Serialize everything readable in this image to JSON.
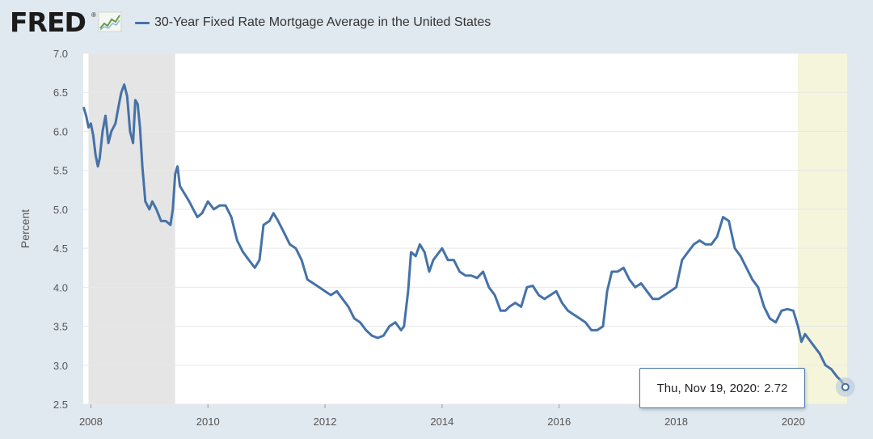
{
  "header": {
    "logo_text": "FRED",
    "logo_reg": "®",
    "logo_icon": "line-chart-icon",
    "series_title": "30-Year Fixed Rate Mortgage Average in the United States"
  },
  "colors": {
    "line": "#4572a7",
    "recession": "#e5e5e5",
    "recent_highlight": "#f5f5dc",
    "plot_bg": "#ffffff",
    "page_bg": "#e1e9f0",
    "grid": "#e8e8e8"
  },
  "tooltip": {
    "date": "Thu, Nov 19, 2020:",
    "value": "2.72"
  },
  "chart_data": {
    "type": "line",
    "title": "30-Year Fixed Rate Mortgage Average in the United States",
    "ylabel": "Percent",
    "xlabel": "",
    "xlim": [
      2007.87,
      2020.92
    ],
    "ylim": [
      2.5,
      7.0
    ],
    "yticks": [
      2.5,
      3.0,
      3.5,
      4.0,
      4.5,
      5.0,
      5.5,
      6.0,
      6.5,
      7.0
    ],
    "ytick_labels": [
      "2.5",
      "3.0",
      "3.5",
      "4.0",
      "4.5",
      "5.0",
      "5.5",
      "6.0",
      "6.5",
      "7.0"
    ],
    "xticks": [
      2008,
      2010,
      2012,
      2014,
      2016,
      2018,
      2020
    ],
    "xtick_labels": [
      "2008",
      "2010",
      "2012",
      "2014",
      "2016",
      "2018",
      "2020"
    ],
    "grid": "horizontal",
    "shaded_regions": [
      {
        "kind": "recession",
        "from": 2007.96,
        "to": 2009.44
      },
      {
        "kind": "recession",
        "from": 2020.08,
        "to": 2020.92
      }
    ],
    "series": [
      {
        "points": [
          [
            2007.88,
            6.3
          ],
          [
            2007.92,
            6.2
          ],
          [
            2007.96,
            6.05
          ],
          [
            2008.0,
            6.1
          ],
          [
            2008.04,
            5.95
          ],
          [
            2008.08,
            5.7
          ],
          [
            2008.12,
            5.55
          ],
          [
            2008.15,
            5.65
          ],
          [
            2008.2,
            6.0
          ],
          [
            2008.25,
            6.2
          ],
          [
            2008.3,
            5.85
          ],
          [
            2008.35,
            6.0
          ],
          [
            2008.42,
            6.1
          ],
          [
            2008.48,
            6.35
          ],
          [
            2008.52,
            6.5
          ],
          [
            2008.57,
            6.6
          ],
          [
            2008.62,
            6.45
          ],
          [
            2008.67,
            6.0
          ],
          [
            2008.72,
            5.85
          ],
          [
            2008.76,
            6.4
          ],
          [
            2008.8,
            6.35
          ],
          [
            2008.84,
            6.05
          ],
          [
            2008.88,
            5.55
          ],
          [
            2008.93,
            5.1
          ],
          [
            2009.0,
            5.0
          ],
          [
            2009.05,
            5.1
          ],
          [
            2009.12,
            5.0
          ],
          [
            2009.2,
            4.85
          ],
          [
            2009.28,
            4.85
          ],
          [
            2009.36,
            4.8
          ],
          [
            2009.4,
            5.0
          ],
          [
            2009.44,
            5.45
          ],
          [
            2009.48,
            5.55
          ],
          [
            2009.52,
            5.3
          ],
          [
            2009.6,
            5.2
          ],
          [
            2009.68,
            5.1
          ],
          [
            2009.75,
            5.0
          ],
          [
            2009.82,
            4.9
          ],
          [
            2009.9,
            4.95
          ],
          [
            2010.0,
            5.1
          ],
          [
            2010.1,
            5.0
          ],
          [
            2010.2,
            5.05
          ],
          [
            2010.3,
            5.05
          ],
          [
            2010.4,
            4.9
          ],
          [
            2010.5,
            4.6
          ],
          [
            2010.6,
            4.45
          ],
          [
            2010.7,
            4.35
          ],
          [
            2010.8,
            4.25
          ],
          [
            2010.88,
            4.35
          ],
          [
            2010.95,
            4.8
          ],
          [
            2011.05,
            4.85
          ],
          [
            2011.12,
            4.95
          ],
          [
            2011.2,
            4.85
          ],
          [
            2011.3,
            4.7
          ],
          [
            2011.4,
            4.55
          ],
          [
            2011.5,
            4.5
          ],
          [
            2011.6,
            4.35
          ],
          [
            2011.7,
            4.1
          ],
          [
            2011.8,
            4.05
          ],
          [
            2011.9,
            4.0
          ],
          [
            2012.0,
            3.95
          ],
          [
            2012.1,
            3.9
          ],
          [
            2012.2,
            3.95
          ],
          [
            2012.3,
            3.85
          ],
          [
            2012.4,
            3.75
          ],
          [
            2012.5,
            3.6
          ],
          [
            2012.6,
            3.55
          ],
          [
            2012.7,
            3.45
          ],
          [
            2012.8,
            3.38
          ],
          [
            2012.9,
            3.35
          ],
          [
            2013.0,
            3.38
          ],
          [
            2013.1,
            3.5
          ],
          [
            2013.2,
            3.55
          ],
          [
            2013.3,
            3.45
          ],
          [
            2013.35,
            3.5
          ],
          [
            2013.42,
            3.95
          ],
          [
            2013.47,
            4.45
          ],
          [
            2013.55,
            4.4
          ],
          [
            2013.62,
            4.55
          ],
          [
            2013.7,
            4.45
          ],
          [
            2013.78,
            4.2
          ],
          [
            2013.85,
            4.35
          ],
          [
            2013.95,
            4.45
          ],
          [
            2014.0,
            4.5
          ],
          [
            2014.1,
            4.35
          ],
          [
            2014.2,
            4.35
          ],
          [
            2014.3,
            4.2
          ],
          [
            2014.4,
            4.15
          ],
          [
            2014.5,
            4.15
          ],
          [
            2014.6,
            4.12
          ],
          [
            2014.7,
            4.2
          ],
          [
            2014.8,
            4.0
          ],
          [
            2014.9,
            3.9
          ],
          [
            2015.0,
            3.7
          ],
          [
            2015.08,
            3.7
          ],
          [
            2015.15,
            3.75
          ],
          [
            2015.25,
            3.8
          ],
          [
            2015.35,
            3.75
          ],
          [
            2015.45,
            4.0
          ],
          [
            2015.55,
            4.02
          ],
          [
            2015.65,
            3.9
          ],
          [
            2015.75,
            3.85
          ],
          [
            2015.85,
            3.9
          ],
          [
            2015.95,
            3.95
          ],
          [
            2016.05,
            3.8
          ],
          [
            2016.15,
            3.7
          ],
          [
            2016.25,
            3.65
          ],
          [
            2016.35,
            3.6
          ],
          [
            2016.45,
            3.55
          ],
          [
            2016.55,
            3.45
          ],
          [
            2016.65,
            3.45
          ],
          [
            2016.75,
            3.5
          ],
          [
            2016.82,
            3.95
          ],
          [
            2016.9,
            4.2
          ],
          [
            2017.0,
            4.2
          ],
          [
            2017.1,
            4.25
          ],
          [
            2017.2,
            4.1
          ],
          [
            2017.3,
            4.0
          ],
          [
            2017.4,
            4.05
          ],
          [
            2017.5,
            3.95
          ],
          [
            2017.6,
            3.85
          ],
          [
            2017.7,
            3.85
          ],
          [
            2017.8,
            3.9
          ],
          [
            2017.9,
            3.95
          ],
          [
            2018.0,
            4.0
          ],
          [
            2018.1,
            4.35
          ],
          [
            2018.2,
            4.45
          ],
          [
            2018.3,
            4.55
          ],
          [
            2018.4,
            4.6
          ],
          [
            2018.5,
            4.55
          ],
          [
            2018.6,
            4.55
          ],
          [
            2018.7,
            4.65
          ],
          [
            2018.8,
            4.9
          ],
          [
            2018.9,
            4.85
          ],
          [
            2019.0,
            4.5
          ],
          [
            2019.1,
            4.4
          ],
          [
            2019.2,
            4.25
          ],
          [
            2019.3,
            4.1
          ],
          [
            2019.4,
            4.0
          ],
          [
            2019.5,
            3.75
          ],
          [
            2019.6,
            3.6
          ],
          [
            2019.7,
            3.55
          ],
          [
            2019.8,
            3.7
          ],
          [
            2019.9,
            3.72
          ],
          [
            2020.0,
            3.7
          ],
          [
            2020.08,
            3.5
          ],
          [
            2020.14,
            3.3
          ],
          [
            2020.2,
            3.4
          ],
          [
            2020.25,
            3.35
          ],
          [
            2020.35,
            3.25
          ],
          [
            2020.45,
            3.15
          ],
          [
            2020.55,
            3.0
          ],
          [
            2020.65,
            2.95
          ],
          [
            2020.75,
            2.85
          ],
          [
            2020.82,
            2.8
          ],
          [
            2020.89,
            2.72
          ]
        ]
      }
    ],
    "highlighted_point": {
      "x": 2020.89,
      "y": 2.72
    }
  }
}
